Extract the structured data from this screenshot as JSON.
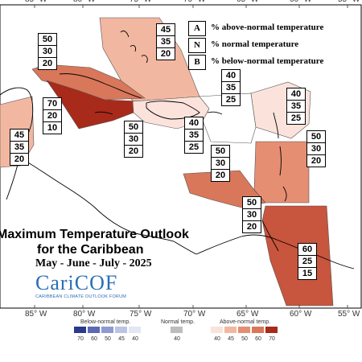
{
  "map": {
    "title_line1": "Maximum Temperature Outlook",
    "title_line2": "for the Caribbean",
    "period": "May - June - July - 2025",
    "longitude_labels": [
      "85° W",
      "80° W",
      "75° W",
      "70° W",
      "65° W",
      "60° W",
      "55° W"
    ]
  },
  "logo": {
    "name": "CariCOF",
    "subtitle": "CARIBBEAN CLIMATE OUTLOOK FORUM"
  },
  "key": {
    "rows": [
      {
        "letter": "A",
        "text": "% above-normal temperature"
      },
      {
        "letter": "N",
        "text": "% normal temperature"
      },
      {
        "letter": "B",
        "text": "% below-normal temperature"
      }
    ]
  },
  "regions": [
    {
      "name": "bahamas",
      "above": "45",
      "normal": "35",
      "below": "20",
      "color": "#f2b7a0"
    },
    {
      "name": "cuba",
      "above": "50",
      "normal": "30",
      "below": "20",
      "color": "#d9775a"
    },
    {
      "name": "cayman-jamaica",
      "above": "70",
      "normal": "20",
      "below": "10",
      "color": "#a82a1a"
    },
    {
      "name": "belize",
      "above": "45",
      "normal": "35",
      "below": "20",
      "color": "#f2b7a0"
    },
    {
      "name": "jamaica-south",
      "above": "50",
      "normal": "30",
      "below": "20",
      "color": "#d9775a"
    },
    {
      "name": "hispaniola",
      "above": "40",
      "normal": "35",
      "below": "25",
      "color": "#fbe3dc"
    },
    {
      "name": "turks-caicos",
      "above": "40",
      "normal": "35",
      "below": "25",
      "color": "#fbe3dc"
    },
    {
      "name": "leeward-islands",
      "above": "40",
      "normal": "35",
      "below": "25",
      "color": "#fbe3dc"
    },
    {
      "name": "windward-islands",
      "above": "50",
      "normal": "30",
      "below": "20",
      "color": "#d9775a"
    },
    {
      "name": "abc-islands",
      "above": "50",
      "normal": "30",
      "below": "20",
      "color": "#d9775a"
    },
    {
      "name": "trinidad",
      "above": "50",
      "normal": "30",
      "below": "20",
      "color": "#d9775a"
    },
    {
      "name": "guianas",
      "above": "60",
      "normal": "25",
      "below": "15",
      "color": "#c8553d"
    }
  ],
  "scale": {
    "below_title": "Below-normal temp.",
    "normal_title": "Normal temp.",
    "above_title": "Above-normal temp.",
    "below_ticks": [
      "70",
      "60",
      "50",
      "45",
      "40"
    ],
    "normal_tick": "40",
    "above_ticks": [
      "40",
      "45",
      "50",
      "60",
      "70"
    ],
    "below_colors": [
      "#2b3a8c",
      "#5b6ab5",
      "#8f9ad0",
      "#bcc3e3",
      "#e3e6f3"
    ],
    "normal_color": "#bdbdbd",
    "above_colors": [
      "#fbe3dc",
      "#f2b7a0",
      "#e58e72",
      "#d9775a",
      "#a82a1a"
    ]
  }
}
